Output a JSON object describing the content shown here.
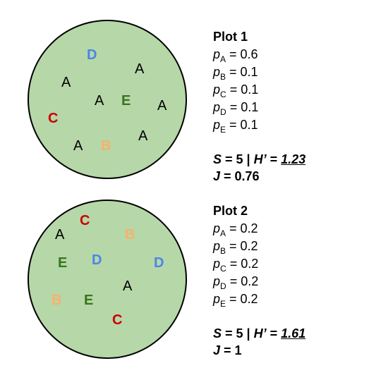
{
  "colors": {
    "circle_fill": "#b6d7a8",
    "A": "#000000",
    "B": "#f6b26b",
    "C": "#cc0000",
    "D": "#4a86e8",
    "E": "#38761d"
  },
  "plots": [
    {
      "title": "Plot 1",
      "species_labels": [
        "D",
        "A",
        "A",
        "A",
        "E",
        "A",
        "C",
        "A",
        "B",
        "A"
      ],
      "proportions": [
        {
          "p": "p",
          "sub": "A",
          "eq": " = 0.6"
        },
        {
          "p": "p",
          "sub": "B",
          "eq": " = 0.1"
        },
        {
          "p": "p",
          "sub": "C",
          "eq": " = 0.1"
        },
        {
          "p": "p",
          "sub": "D",
          "eq": " = 0.1"
        },
        {
          "p": "p",
          "sub": "E",
          "eq": " = 0.1"
        }
      ],
      "stats": {
        "s_label": "S",
        "s_value": " = 5 | ",
        "h_label": "H’",
        "h_eq": " = ",
        "h_value": "1.23",
        "j_label": "J",
        "j_value": " = 0.76"
      }
    },
    {
      "title": "Plot 2",
      "species_labels": [
        "C",
        "A",
        "B",
        "E",
        "D",
        "D",
        "A",
        "B",
        "E",
        "C"
      ],
      "proportions": [
        {
          "p": "p",
          "sub": "A",
          "eq": " = 0.2"
        },
        {
          "p": "p",
          "sub": "B",
          "eq": " = 0.2"
        },
        {
          "p": "p",
          "sub": "C",
          "eq": " = 0.2"
        },
        {
          "p": "p",
          "sub": "D",
          "eq": " = 0.2"
        },
        {
          "p": "p",
          "sub": "E",
          "eq": " = 0.2"
        }
      ],
      "stats": {
        "s_label": "S",
        "s_value": " = 5 | ",
        "h_label": "H’",
        "h_eq": " = ",
        "h_value": "1.61",
        "j_label": "J",
        "j_value": " = 1"
      }
    }
  ]
}
